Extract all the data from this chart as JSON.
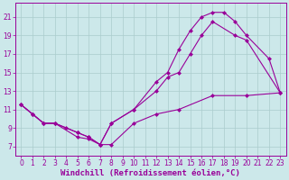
{
  "bg_color": "#cce8ea",
  "line_color": "#990099",
  "grid_color": "#aacccc",
  "xlabel": "Windchill (Refroidissement éolien,°C)",
  "xlabel_fontsize": 6.5,
  "tick_fontsize": 5.5,
  "xlim": [
    -0.5,
    23.5
  ],
  "ylim": [
    6,
    22.5
  ],
  "yticks": [
    7,
    9,
    11,
    13,
    15,
    17,
    19,
    21
  ],
  "xticks": [
    0,
    1,
    2,
    3,
    4,
    5,
    6,
    7,
    8,
    9,
    10,
    11,
    12,
    13,
    14,
    15,
    16,
    17,
    18,
    19,
    20,
    21,
    22,
    23
  ],
  "line1_x": [
    0,
    1,
    2,
    3,
    4,
    5,
    6,
    7,
    8,
    10,
    12,
    14,
    17,
    20,
    23
  ],
  "line1_y": [
    11.5,
    10.5,
    9.5,
    9.5,
    9.0,
    8.5,
    8.0,
    7.2,
    7.2,
    9.5,
    10.5,
    11.0,
    12.5,
    12.5,
    12.8
  ],
  "line2_x": [
    0,
    1,
    2,
    3,
    5,
    6,
    7,
    8,
    10,
    12,
    13,
    14,
    15,
    16,
    17,
    19,
    20,
    23
  ],
  "line2_y": [
    11.5,
    10.5,
    9.5,
    9.5,
    8.0,
    7.8,
    7.2,
    9.5,
    11.0,
    13.0,
    14.5,
    15.0,
    17.0,
    19.0,
    20.5,
    19.0,
    18.5,
    12.8
  ],
  "line3_x": [
    0,
    1,
    2,
    3,
    5,
    6,
    7,
    8,
    10,
    12,
    13,
    14,
    15,
    16,
    17,
    18,
    19,
    20,
    22,
    23
  ],
  "line3_y": [
    11.5,
    10.5,
    9.5,
    9.5,
    8.5,
    8.0,
    7.2,
    9.5,
    11.0,
    14.0,
    15.0,
    17.5,
    19.5,
    21.0,
    21.5,
    21.5,
    20.5,
    19.0,
    16.5,
    12.8
  ]
}
